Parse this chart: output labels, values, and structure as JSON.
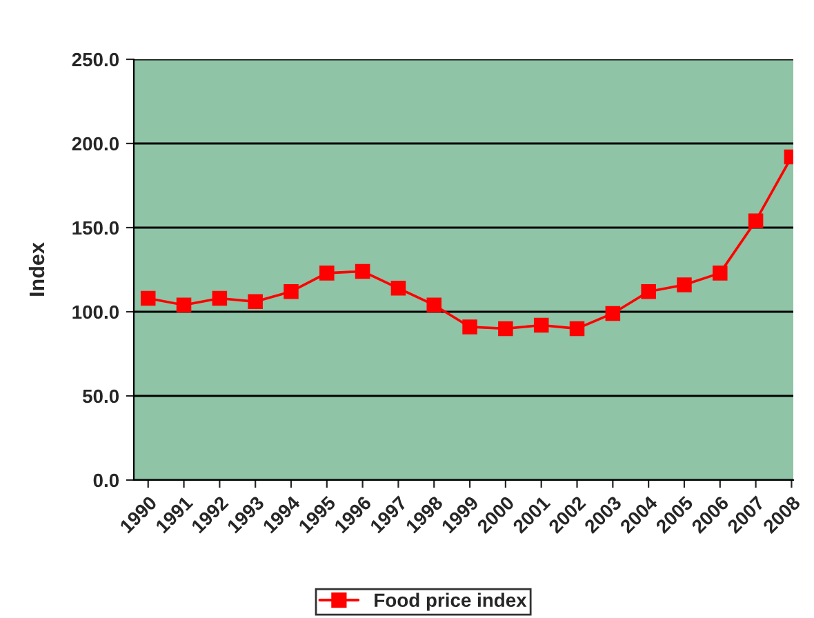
{
  "chart_data": {
    "type": "line",
    "ylabel": "Index",
    "categories": [
      "1990",
      "1991",
      "1992",
      "1993",
      "1994",
      "1995",
      "1996",
      "1997",
      "1998",
      "1999",
      "2000",
      "2001",
      "2002",
      "2003",
      "2004",
      "2005",
      "2006",
      "2007",
      "2008"
    ],
    "series": [
      {
        "name": "Food price index",
        "color": "#ff0000",
        "values": [
          108,
          104,
          108,
          106,
          112,
          123,
          124,
          114,
          104,
          91,
          90,
          92,
          90,
          99,
          112,
          116,
          123,
          154,
          192
        ]
      }
    ],
    "ylim": [
      0,
      250
    ],
    "yticks": [
      {
        "value": 0,
        "label": "0.0"
      },
      {
        "value": 50,
        "label": "50.0"
      },
      {
        "value": 100,
        "label": "100.0"
      },
      {
        "value": 150,
        "label": "150.0"
      },
      {
        "value": 200,
        "label": "200.0"
      },
      {
        "value": 250,
        "label": "250.0"
      }
    ],
    "grid": "y",
    "legend": "bottom",
    "marker": "square",
    "line_style": "solid"
  }
}
